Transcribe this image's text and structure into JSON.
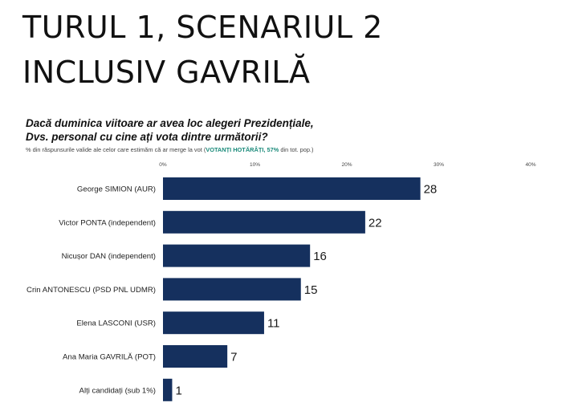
{
  "header": {
    "title_line1": "TURUL 1, SCENARIUL 2",
    "title_line2": "INCLUSIV GAVRILĂ"
  },
  "question": {
    "line1": "Dacă duminica viitoare ar avea loc alegeri Prezidențiale,",
    "line2": "Dvs. personal cu cine ați vota dintre următorii?"
  },
  "note": {
    "prefix": "% din răspunsurile valide ale celor care estimăm că ar merge la vot (",
    "highlight": "VOTANȚI HOTĂRÂȚI, 57%",
    "suffix": " din tot. pop.)"
  },
  "colors": {
    "bar": "#15305e",
    "highlight": "#1a8a7a"
  },
  "chart_data": {
    "type": "bar",
    "orientation": "horizontal",
    "categories": [
      "George SIMION (AUR)",
      "Victor PONTA (independent)",
      "Nicușor DAN (independent)",
      "Crin ANTONESCU (PSD PNL UDMR)",
      "Elena LASCONI (USR)",
      "Ana Maria GAVRILĂ (POT)",
      "Alți candidați (sub 1%)"
    ],
    "values": [
      28,
      22,
      16,
      15,
      11,
      7,
      1
    ],
    "xlim": [
      0,
      40
    ],
    "xticks": [
      0,
      10,
      20,
      30,
      40
    ],
    "xtick_labels": [
      "0%",
      "10%",
      "20%",
      "30%",
      "40%"
    ],
    "tick_position": "top",
    "grid": false,
    "legend": "none"
  }
}
